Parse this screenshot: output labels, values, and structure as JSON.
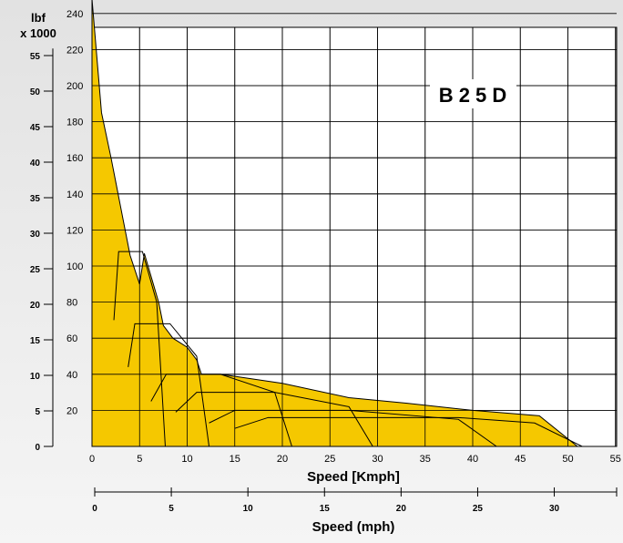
{
  "chart_data": {
    "type": "area",
    "title": "B 2 5 D",
    "xlabel": "Speed [Kmph]",
    "x2label": "Speed (mph)",
    "ylabel_outer_unit_line1": "lbf",
    "ylabel_outer_unit_line2": "x 1000",
    "xlim": [
      0,
      55
    ],
    "ylim_inner": [
      0,
      250
    ],
    "ylim_outer": [
      0,
      56
    ],
    "x_ticks": [
      "0",
      "5",
      "10",
      "15",
      "20",
      "25",
      "30",
      "35",
      "40",
      "45",
      "50",
      "55"
    ],
    "y_inner_ticks": [
      "20",
      "40",
      "60",
      "80",
      "100",
      "120",
      "140",
      "160",
      "180",
      "200",
      "220",
      "240"
    ],
    "y_outer_ticks": [
      "0",
      "5",
      "10",
      "15",
      "20",
      "25",
      "30",
      "35",
      "40",
      "45",
      "50",
      "55"
    ],
    "x2_ticks": [
      "0",
      "5",
      "10",
      "15",
      "20",
      "25",
      "30"
    ],
    "fill_color": "#f5c800",
    "envelope": {
      "x": [
        0,
        1,
        2,
        3,
        4,
        5,
        5.5,
        7,
        7.5,
        7.5,
        8.5,
        10,
        11,
        11.5,
        12.5,
        13.5,
        20,
        27,
        33,
        40,
        47,
        51
      ],
      "y": [
        248,
        185,
        160,
        133,
        106,
        90,
        107,
        80,
        67,
        67,
        60,
        55,
        48,
        40,
        40,
        40,
        35,
        27,
        24,
        20,
        17,
        0
      ]
    },
    "gear_curves": [
      {
        "x": [
          2.3,
          2.8,
          5.3,
          6.8,
          7.7
        ],
        "y": [
          70,
          108,
          108,
          80,
          0
        ]
      },
      {
        "x": [
          3.8,
          4.5,
          8.2,
          11,
          12.3
        ],
        "y": [
          44,
          68,
          68,
          50,
          0
        ]
      },
      {
        "x": [
          6.2,
          7.8,
          13.5,
          19.2,
          21
        ],
        "y": [
          25,
          40,
          40,
          30,
          0
        ]
      },
      {
        "x": [
          8.8,
          11,
          19.2,
          27,
          29.5
        ],
        "y": [
          19,
          30,
          30,
          22,
          0
        ]
      },
      {
        "x": [
          12.3,
          15,
          27,
          38.5,
          42.5
        ],
        "y": [
          13,
          20,
          20,
          15,
          0
        ]
      },
      {
        "x": [
          15,
          18.5,
          38.5,
          46.5,
          51.5
        ],
        "y": [
          10,
          16,
          16,
          13,
          0
        ]
      }
    ]
  }
}
